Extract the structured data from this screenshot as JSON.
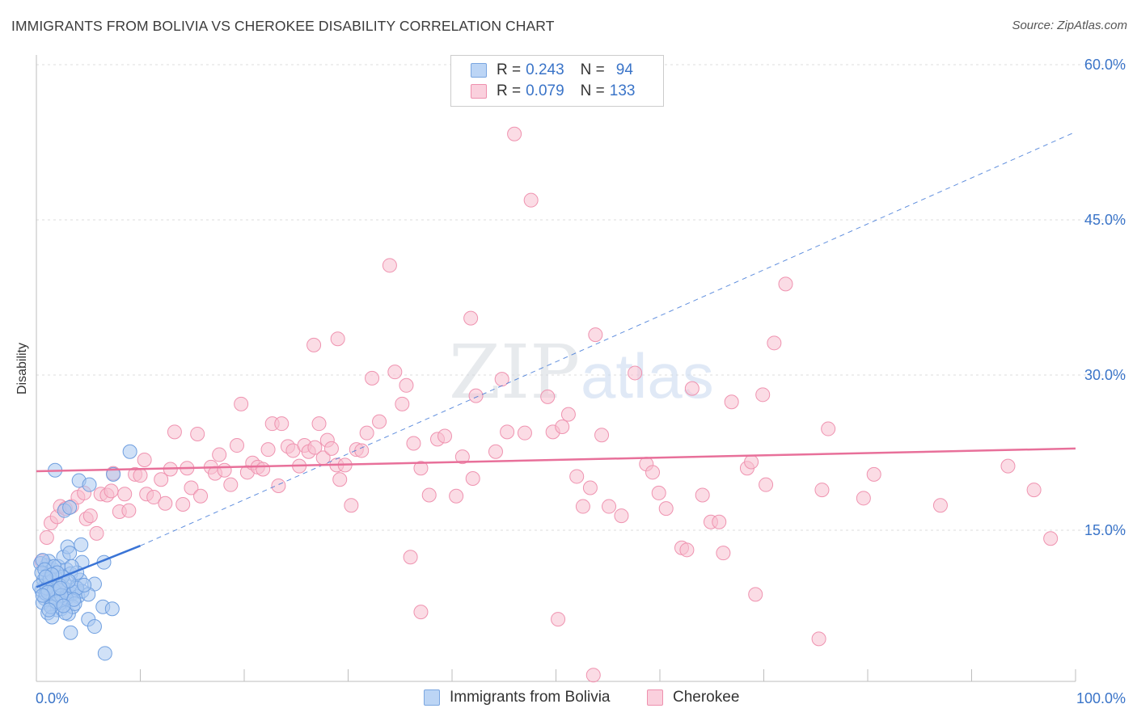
{
  "title": "IMMIGRANTS FROM BOLIVIA VS CHEROKEE DISABILITY CORRELATION CHART",
  "source": "Source: ZipAtlas.com",
  "watermark": {
    "zip": "ZIP",
    "atlas": "atlas"
  },
  "legend": {
    "rows": [
      {
        "r_label": "R =",
        "r_value": "0.243",
        "n_label": "N =",
        "n_value": "94",
        "color": "#a9c8f0",
        "border": "#7aa6e0"
      },
      {
        "r_label": "R =",
        "r_value": "0.079",
        "n_label": "N =",
        "n_value": "133",
        "color": "#f7bfd0",
        "border": "#ee90ae"
      }
    ]
  },
  "bottom_legend": [
    {
      "label": "Immigrants from Bolivia",
      "color": "#a9c8f0",
      "border": "#7aa6e0"
    },
    {
      "label": "Cherokee",
      "color": "#f7bfd0",
      "border": "#ee90ae"
    }
  ],
  "colors": {
    "blue": "#3a74d6",
    "pink": "#e8709a",
    "axis_text": "#3a74c8"
  },
  "chart_data": {
    "type": "scatter",
    "ylabel": "Disability",
    "xlabel": "",
    "xlim": [
      0,
      100
    ],
    "ylim": [
      0,
      60
    ],
    "x_tick_labels": [
      {
        "value": 0,
        "label": "0.0%"
      },
      {
        "value": 100,
        "label": "100.0%"
      }
    ],
    "y_tick_labels": [
      {
        "value": 15,
        "label": "15.0%"
      },
      {
        "value": 30,
        "label": "30.0%"
      },
      {
        "value": 45,
        "label": "45.0%"
      },
      {
        "value": 60,
        "label": "60.0%"
      }
    ],
    "grid": true,
    "legend_position": "top-center",
    "series": [
      {
        "name": "Immigrants from Bolivia",
        "color": "#a9c8f0",
        "stroke": "#6f9fe0",
        "trend": {
          "x": [
            0,
            10
          ],
          "y": [
            9.5,
            13.5
          ],
          "extended_to": [
            100,
            53.5
          ]
        },
        "points": [
          [
            1.0,
            10.6
          ],
          [
            1.5,
            10.0
          ],
          [
            0.5,
            9.2
          ],
          [
            1.2,
            8.8
          ],
          [
            0.8,
            8.4
          ],
          [
            1.8,
            9.0
          ],
          [
            2.0,
            8.2
          ],
          [
            1.4,
            7.8
          ],
          [
            2.5,
            9.6
          ],
          [
            2.8,
            8.6
          ],
          [
            0.6,
            8.0
          ],
          [
            1.0,
            11.6
          ],
          [
            1.6,
            11.2
          ],
          [
            2.2,
            10.4
          ],
          [
            0.4,
            11.8
          ],
          [
            0.9,
            9.8
          ],
          [
            1.3,
            9.3
          ],
          [
            1.7,
            8.9
          ],
          [
            2.6,
            8.3
          ],
          [
            3.0,
            9.2
          ],
          [
            3.4,
            8.8
          ],
          [
            3.8,
            9.5
          ],
          [
            2.0,
            7.3
          ],
          [
            1.1,
            7.0
          ],
          [
            2.4,
            7.4
          ],
          [
            3.1,
            6.9
          ],
          [
            1.5,
            6.6
          ],
          [
            2.9,
            11.2
          ],
          [
            3.3,
            10.8
          ],
          [
            4.2,
            10.2
          ],
          [
            0.7,
            10.2
          ],
          [
            1.9,
            9.9
          ],
          [
            2.3,
            8.0
          ],
          [
            1.6,
            8.5
          ],
          [
            0.3,
            9.6
          ],
          [
            0.9,
            8.9
          ],
          [
            2.7,
            9.9
          ],
          [
            3.6,
            9.0
          ],
          [
            4.0,
            8.6
          ],
          [
            4.4,
            9.1
          ],
          [
            1.2,
            12.0
          ],
          [
            2.1,
            11.5
          ],
          [
            2.6,
            12.4
          ],
          [
            3.0,
            13.4
          ],
          [
            3.2,
            12.8
          ],
          [
            4.3,
            13.6
          ],
          [
            4.4,
            11.9
          ],
          [
            3.9,
            10.9
          ],
          [
            1.7,
            11.5
          ],
          [
            0.6,
            12.1
          ],
          [
            1.8,
            20.8
          ],
          [
            2.7,
            16.9
          ],
          [
            3.2,
            17.2
          ],
          [
            4.1,
            19.8
          ],
          [
            5.1,
            19.4
          ],
          [
            9.0,
            22.6
          ],
          [
            7.4,
            20.4
          ],
          [
            6.5,
            11.9
          ],
          [
            5.6,
            9.8
          ],
          [
            5.0,
            8.8
          ],
          [
            6.4,
            7.6
          ],
          [
            7.3,
            7.4
          ],
          [
            5.0,
            6.4
          ],
          [
            5.6,
            5.7
          ],
          [
            3.3,
            5.1
          ],
          [
            6.6,
            3.1
          ],
          [
            1.4,
            7.6
          ],
          [
            2.0,
            8.8
          ],
          [
            2.5,
            10.5
          ],
          [
            1.0,
            9.4
          ],
          [
            0.5,
            10.9
          ],
          [
            1.7,
            9.2
          ],
          [
            2.2,
            9.7
          ],
          [
            2.9,
            8.4
          ],
          [
            3.5,
            7.6
          ],
          [
            3.7,
            7.9
          ],
          [
            2.8,
            7.0
          ],
          [
            1.3,
            10.3
          ],
          [
            0.8,
            11.2
          ],
          [
            1.1,
            9.0
          ],
          [
            2.4,
            8.7
          ],
          [
            3.9,
            9.4
          ],
          [
            3.1,
            10.1
          ],
          [
            2.0,
            10.9
          ],
          [
            1.5,
            10.7
          ],
          [
            0.6,
            8.7
          ],
          [
            1.9,
            8.1
          ],
          [
            2.3,
            9.4
          ],
          [
            3.6,
            8.3
          ],
          [
            2.6,
            7.7
          ],
          [
            1.2,
            7.3
          ],
          [
            4.6,
            9.7
          ],
          [
            3.4,
            11.5
          ],
          [
            0.9,
            10.5
          ]
        ]
      },
      {
        "name": "Cherokee",
        "color": "#f7bfd0",
        "stroke": "#ef93b0",
        "trend": {
          "x": [
            0,
            100
          ],
          "y": [
            20.7,
            22.9
          ]
        },
        "points": [
          [
            0.5,
            12.0
          ],
          [
            1.0,
            14.3
          ],
          [
            1.4,
            15.7
          ],
          [
            2.0,
            16.3
          ],
          [
            2.3,
            17.3
          ],
          [
            2.8,
            17.1
          ],
          [
            3.4,
            17.3
          ],
          [
            4.0,
            18.2
          ],
          [
            4.6,
            18.6
          ],
          [
            4.8,
            16.1
          ],
          [
            5.2,
            16.4
          ],
          [
            5.8,
            14.7
          ],
          [
            6.2,
            18.5
          ],
          [
            6.8,
            18.4
          ],
          [
            7.2,
            18.8
          ],
          [
            7.4,
            20.5
          ],
          [
            8.0,
            16.8
          ],
          [
            8.5,
            18.5
          ],
          [
            8.9,
            16.9
          ],
          [
            9.5,
            20.4
          ],
          [
            10.0,
            20.3
          ],
          [
            10.4,
            21.8
          ],
          [
            10.6,
            18.5
          ],
          [
            11.3,
            18.2
          ],
          [
            12.0,
            19.9
          ],
          [
            12.4,
            17.6
          ],
          [
            12.9,
            20.9
          ],
          [
            13.3,
            24.5
          ],
          [
            14.1,
            17.5
          ],
          [
            14.5,
            21.0
          ],
          [
            14.9,
            19.1
          ],
          [
            15.5,
            24.3
          ],
          [
            15.8,
            18.3
          ],
          [
            16.8,
            21.1
          ],
          [
            17.2,
            20.5
          ],
          [
            17.6,
            22.3
          ],
          [
            18.1,
            20.8
          ],
          [
            18.7,
            19.4
          ],
          [
            19.3,
            23.2
          ],
          [
            19.7,
            27.2
          ],
          [
            20.3,
            20.6
          ],
          [
            20.8,
            21.5
          ],
          [
            21.3,
            21.1
          ],
          [
            21.8,
            20.9
          ],
          [
            22.3,
            22.8
          ],
          [
            22.7,
            25.3
          ],
          [
            23.3,
            19.3
          ],
          [
            23.6,
            25.3
          ],
          [
            24.2,
            23.1
          ],
          [
            24.7,
            22.7
          ],
          [
            25.3,
            21.2
          ],
          [
            25.8,
            23.2
          ],
          [
            26.2,
            22.6
          ],
          [
            26.8,
            23.0
          ],
          [
            27.2,
            25.3
          ],
          [
            27.6,
            22.0
          ],
          [
            28.0,
            23.7
          ],
          [
            28.4,
            22.9
          ],
          [
            28.9,
            21.3
          ],
          [
            29.2,
            19.9
          ],
          [
            29.7,
            21.3
          ],
          [
            30.3,
            17.4
          ],
          [
            30.8,
            22.8
          ],
          [
            31.3,
            22.7
          ],
          [
            31.8,
            24.4
          ],
          [
            32.3,
            29.7
          ],
          [
            33.0,
            25.5
          ],
          [
            34.0,
            40.6
          ],
          [
            34.5,
            30.3
          ],
          [
            35.2,
            27.2
          ],
          [
            35.6,
            29.0
          ],
          [
            36.3,
            23.4
          ],
          [
            37.0,
            21.0
          ],
          [
            37.8,
            18.4
          ],
          [
            38.6,
            23.8
          ],
          [
            39.3,
            24.1
          ],
          [
            40.4,
            18.3
          ],
          [
            41.0,
            22.1
          ],
          [
            41.8,
            35.5
          ],
          [
            42.3,
            28.0
          ],
          [
            42.0,
            20.0
          ],
          [
            44.2,
            22.6
          ],
          [
            44.8,
            29.6
          ],
          [
            45.3,
            24.5
          ],
          [
            46.0,
            53.3
          ],
          [
            47.0,
            24.4
          ],
          [
            47.6,
            46.9
          ],
          [
            49.2,
            27.9
          ],
          [
            49.7,
            24.5
          ],
          [
            50.6,
            25.0
          ],
          [
            51.2,
            26.2
          ],
          [
            52.0,
            20.2
          ],
          [
            52.6,
            17.3
          ],
          [
            53.3,
            19.1
          ],
          [
            53.8,
            33.9
          ],
          [
            54.4,
            24.2
          ],
          [
            55.1,
            17.3
          ],
          [
            56.3,
            16.4
          ],
          [
            57.6,
            30.2
          ],
          [
            58.7,
            21.4
          ],
          [
            59.3,
            20.6
          ],
          [
            59.9,
            18.6
          ],
          [
            60.6,
            17.1
          ],
          [
            62.1,
            13.3
          ],
          [
            62.6,
            13.1
          ],
          [
            63.1,
            28.7
          ],
          [
            64.1,
            18.4
          ],
          [
            64.9,
            15.8
          ],
          [
            65.7,
            15.8
          ],
          [
            66.1,
            12.8
          ],
          [
            66.9,
            27.4
          ],
          [
            68.4,
            21.0
          ],
          [
            68.8,
            21.6
          ],
          [
            69.2,
            8.8
          ],
          [
            69.9,
            28.1
          ],
          [
            70.2,
            19.4
          ],
          [
            71.0,
            33.1
          ],
          [
            72.1,
            38.8
          ],
          [
            75.3,
            4.5
          ],
          [
            75.6,
            18.9
          ],
          [
            76.2,
            24.8
          ],
          [
            79.6,
            18.1
          ],
          [
            80.6,
            20.4
          ],
          [
            87.0,
            17.4
          ],
          [
            93.5,
            21.2
          ],
          [
            96.0,
            18.9
          ],
          [
            97.6,
            14.2
          ],
          [
            36.0,
            12.4
          ],
          [
            37.0,
            7.1
          ],
          [
            50.2,
            6.4
          ],
          [
            53.6,
            1.0
          ],
          [
            26.7,
            32.9
          ],
          [
            29.0,
            33.5
          ]
        ]
      }
    ]
  }
}
